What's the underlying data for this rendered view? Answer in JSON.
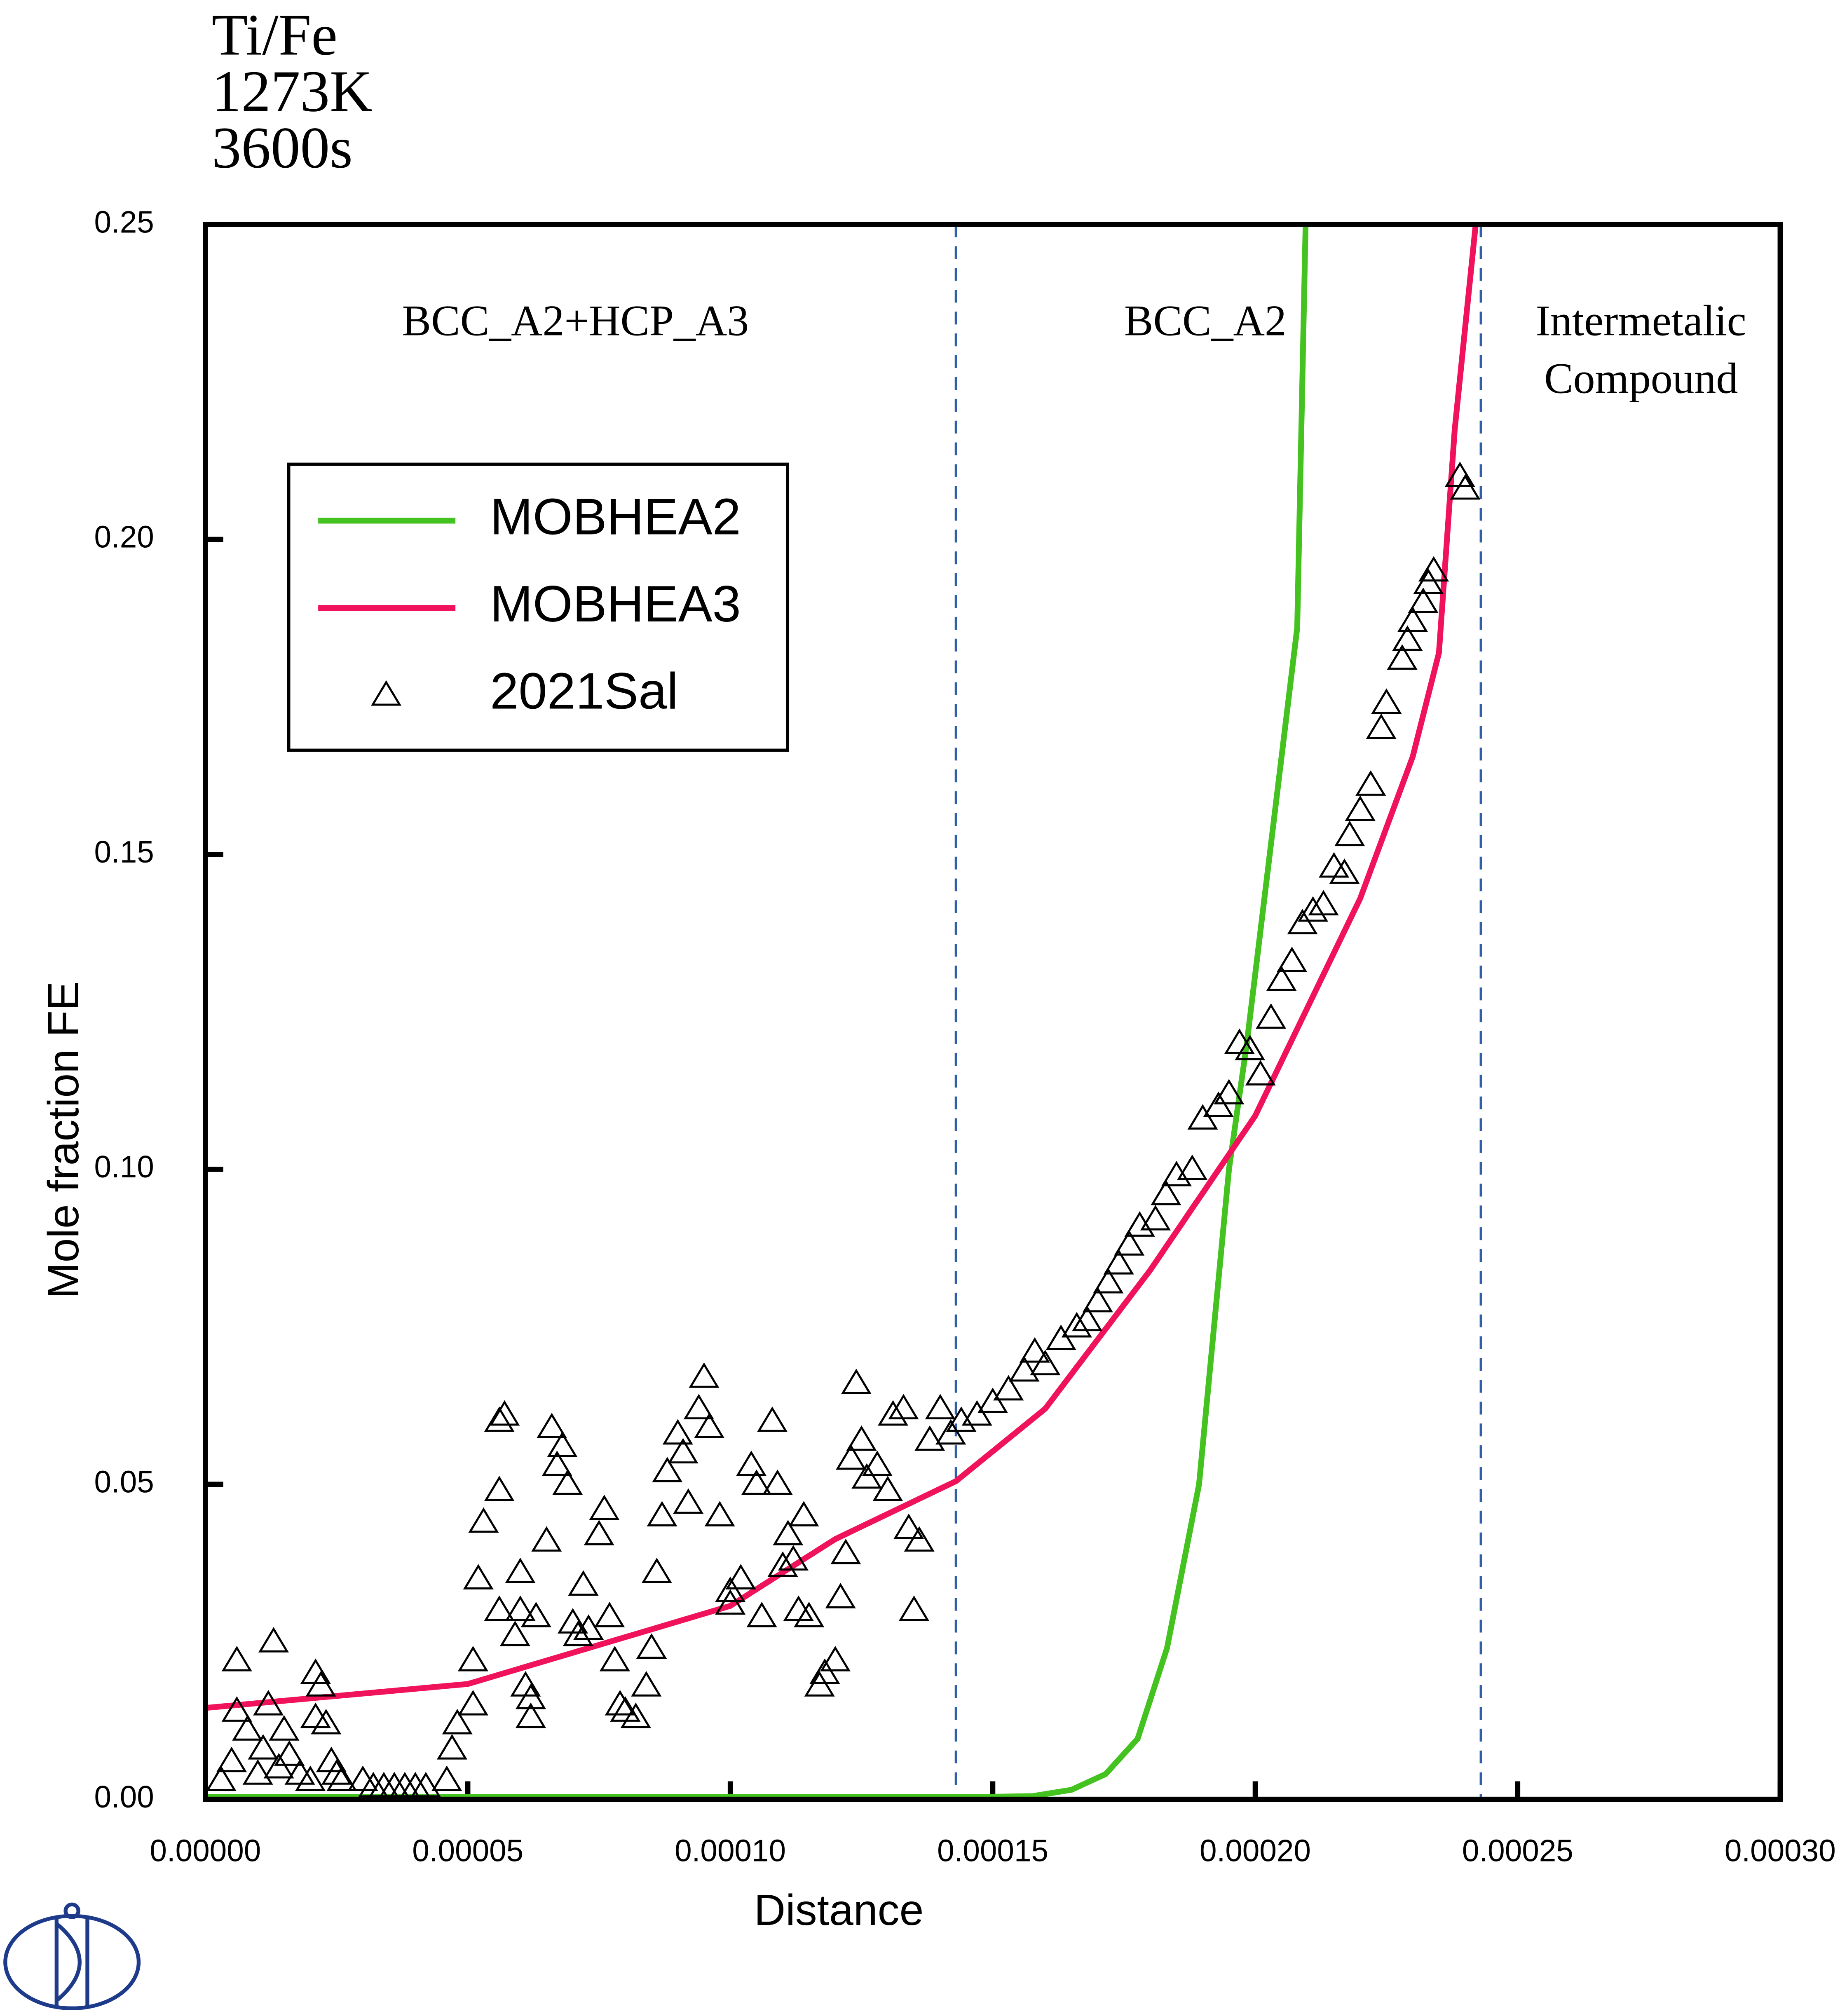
{
  "chart_data": {
    "type": "line",
    "title_lines": [
      "Ti/Fe",
      "1273K",
      "3600s"
    ],
    "x_label": "Distance",
    "y_label": "Mole fraction FE",
    "xlim": [
      0,
      0.0003
    ],
    "ylim": [
      0,
      0.25
    ],
    "xticks": [
      {
        "value": 0,
        "label": "0.00000"
      },
      {
        "value": 5e-05,
        "label": "0.00005"
      },
      {
        "value": 0.0001,
        "label": "0.00010"
      },
      {
        "value": 0.00015,
        "label": "0.00015"
      },
      {
        "value": 0.0002,
        "label": "0.00020"
      },
      {
        "value": 0.00025,
        "label": "0.00025"
      },
      {
        "value": 0.0003,
        "label": "0.00030"
      }
    ],
    "yticks": [
      {
        "value": 0,
        "label": "0.00"
      },
      {
        "value": 0.05,
        "label": "0.05"
      },
      {
        "value": 0.1,
        "label": "0.10"
      },
      {
        "value": 0.15,
        "label": "0.15"
      },
      {
        "value": 0.2,
        "label": "0.20"
      },
      {
        "value": 0.25,
        "label": "0.25"
      }
    ],
    "phase_boundaries": [
      0.000143,
      0.000243
    ],
    "boundary_color": "#2e5fa8",
    "region_labels": [
      {
        "lines": [
          "BCC_A2+HCP_A3"
        ],
        "x": 7.05e-05,
        "y": 0.234
      },
      {
        "lines": [
          "BCC_A2"
        ],
        "x": 0.0001905,
        "y": 0.234
      },
      {
        "lines": [
          "Intermetalic",
          "Compound"
        ],
        "x": 0.0002735,
        "y": 0.234
      }
    ],
    "series": [
      {
        "name": "MOBHEA2",
        "color": "#44c21f",
        "mode": "line",
        "x": [
          0,
          5e-05,
          0.0001,
          0.00015,
          0.0001576,
          0.000165,
          0.0001715,
          0.0001776,
          0.0001832,
          0.0001893,
          0.000195,
          0.0001984,
          0.000208,
          0.0002096
        ],
        "values": [
          0.0004,
          0.0004,
          0.0004,
          0.0004,
          0.0005,
          0.0015,
          0.004,
          0.0096,
          0.024,
          0.05,
          0.1,
          0.12,
          0.186,
          0.25
        ]
      },
      {
        "name": "MOBHEA3",
        "color": "#f0125a",
        "mode": "line",
        "x": [
          0,
          5e-05,
          0.0001,
          0.00012,
          0.000143,
          0.00016,
          0.00018,
          0.0002,
          0.00022,
          0.00023,
          0.000235,
          0.000238,
          0.000242
        ],
        "values": [
          0.0145,
          0.0183,
          0.0307,
          0.0413,
          0.0505,
          0.062,
          0.084,
          0.1085,
          0.143,
          0.1655,
          0.182,
          0.2174,
          0.25
        ]
      },
      {
        "name": "2021Sal",
        "color": "#000000",
        "mode": "marker",
        "x": [
          3e-06,
          5e-06,
          6e-06,
          6e-06,
          8e-06,
          1e-05,
          1.1e-05,
          1.2e-05,
          1.3e-05,
          1.4e-05,
          1.5e-05,
          1.6e-05,
          1.8e-05,
          2e-05,
          2.1e-05,
          2.1e-05,
          2.2e-05,
          2.3e-05,
          2.4e-05,
          2.5e-05,
          2.6e-05,
          3e-05,
          3.2e-05,
          3.4e-05,
          3.6e-05,
          3.8e-05,
          4e-05,
          4.2e-05,
          4.6e-05,
          4.7e-05,
          4.8e-05,
          5.1e-05,
          5.1e-05,
          5.2e-05,
          5.3e-05,
          5.7e-05,
          5.6e-05,
          5.6e-05,
          5.6e-05,
          5.9e-05,
          6e-05,
          6e-05,
          6.1e-05,
          6.2e-05,
          6.2e-05,
          6.3e-05,
          6.5e-05,
          6.6e-05,
          6.7e-05,
          6.8e-05,
          6.9e-05,
          7e-05,
          7.1e-05,
          7.2e-05,
          7.3e-05,
          7.5e-05,
          7.6e-05,
          7.7e-05,
          7.8e-05,
          7.9e-05,
          8e-05,
          8.2e-05,
          8.4e-05,
          8.5e-05,
          8.6e-05,
          8.7e-05,
          8.8e-05,
          9e-05,
          9.1e-05,
          9.2e-05,
          9.4e-05,
          9.5e-05,
          9.6e-05,
          9.8e-05,
          0.0001,
          0.0001,
          0.000102,
          0.000104,
          0.000105,
          0.000106,
          0.000108,
          0.000109,
          0.00011,
          0.000111,
          0.000112,
          0.000113,
          0.000114,
          0.000115,
          0.000117,
          0.000118,
          0.00012,
          0.000121,
          0.000122,
          0.000123,
          0.000124,
          0.000125,
          0.000126,
          0.000128,
          0.00013,
          0.000131,
          0.000133,
          0.000134,
          0.000135,
          0.000136,
          0.000138,
          0.00014,
          0.000142,
          0.000144,
          0.000147,
          0.00015,
          0.000153,
          0.000156,
          0.000158,
          0.00016,
          0.000163,
          0.000166,
          0.000168,
          0.00017,
          0.000172,
          0.000174,
          0.000176,
          0.000178,
          0.000181,
          0.000183,
          0.000185,
          0.000188,
          0.00019,
          0.000193,
          0.000195,
          0.000197,
          0.000199,
          0.000201,
          0.000203,
          0.000205,
          0.000207,
          0.000209,
          0.000211,
          0.000213,
          0.000215,
          0.000217,
          0.000218,
          0.00022,
          0.000222,
          0.000224,
          0.000225,
          0.000228,
          0.000229,
          0.00023,
          0.000232,
          0.000233,
          0.000234,
          0.000239,
          0.00024
        ],
        "values": [
          0.003,
          0.006,
          0.022,
          0.014,
          0.011,
          0.004,
          0.008,
          0.015,
          0.025,
          0.005,
          0.011,
          0.007,
          0.004,
          0.003,
          0.013,
          0.02,
          0.018,
          0.012,
          0.006,
          0.004,
          0.003,
          0.003,
          0.002,
          0.002,
          0.002,
          0.002,
          0.002,
          0.002,
          0.003,
          0.008,
          0.012,
          0.015,
          0.022,
          0.035,
          0.044,
          0.061,
          0.06,
          0.049,
          0.03,
          0.026,
          0.036,
          0.03,
          0.018,
          0.016,
          0.013,
          0.029,
          0.041,
          0.059,
          0.053,
          0.056,
          0.05,
          0.028,
          0.026,
          0.034,
          0.027,
          0.042,
          0.046,
          0.029,
          0.022,
          0.015,
          0.014,
          0.013,
          0.018,
          0.024,
          0.036,
          0.045,
          0.052,
          0.058,
          0.055,
          0.047,
          0.062,
          0.067,
          0.059,
          0.045,
          0.033,
          0.031,
          0.035,
          0.053,
          0.05,
          0.029,
          0.06,
          0.05,
          0.037,
          0.042,
          0.038,
          0.03,
          0.045,
          0.029,
          0.018,
          0.02,
          0.022,
          0.032,
          0.039,
          0.054,
          0.066,
          0.057,
          0.051,
          0.053,
          0.049,
          0.061,
          0.062,
          0.043,
          0.03,
          0.041,
          0.057,
          0.062,
          0.058,
          0.06,
          0.061,
          0.063,
          0.065,
          0.068,
          0.071,
          0.069,
          0.073,
          0.075,
          0.076,
          0.079,
          0.082,
          0.085,
          0.088,
          0.091,
          0.092,
          0.096,
          0.099,
          0.1,
          0.108,
          0.11,
          0.112,
          0.12,
          0.119,
          0.115,
          0.124,
          0.13,
          0.133,
          0.139,
          0.141,
          0.142,
          0.148,
          0.147,
          0.153,
          0.157,
          0.161,
          0.17,
          0.174,
          0.181,
          0.184,
          0.187,
          0.19,
          0.193,
          0.195,
          0.21,
          0.208
        ]
      }
    ]
  }
}
